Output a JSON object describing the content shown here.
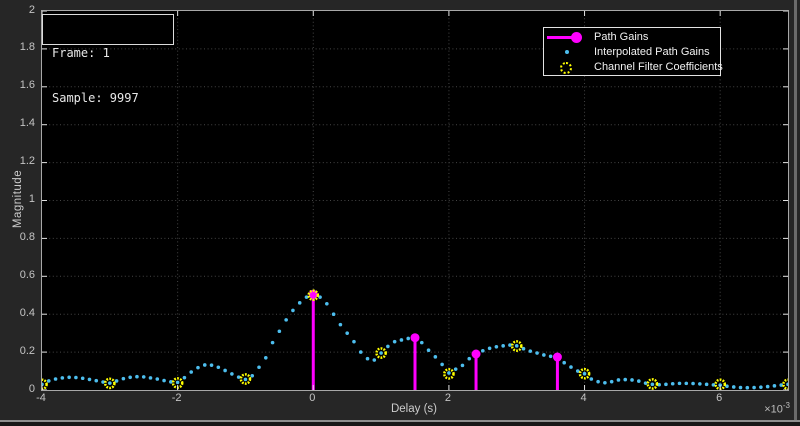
{
  "annotation": {
    "line1": "Frame: 1",
    "line2": "Sample: 9997"
  },
  "axes": {
    "xlabel": "Delay (s)",
    "ylabel": "Magnitude",
    "exponent_base": "×10",
    "exponent_power": "-3",
    "x_tick_values": [
      -4,
      -2,
      0,
      2,
      4,
      6
    ],
    "x_tick_labels": [
      "-4",
      "-2",
      "0",
      "2",
      "4",
      "6"
    ],
    "y_tick_values": [
      0,
      0.2,
      0.4,
      0.6,
      0.8,
      1,
      1.2,
      1.4,
      1.6,
      1.8,
      2
    ],
    "y_tick_labels": [
      "0",
      "0.2",
      "0.4",
      "0.6",
      "0.8",
      "1",
      "1.2",
      "1.4",
      "1.6",
      "1.8",
      "2"
    ],
    "colors": {
      "figure_bg": "#262626",
      "plot_bg": "#000000",
      "axis_box": "#a8a8a8",
      "grid": "#454545",
      "tick_mark": "#e2e2e2",
      "tick_label": "#c4c4c4"
    }
  },
  "legend": {
    "items": [
      {
        "label": "Path Gains",
        "marker": "stem",
        "color": "#ff00ff"
      },
      {
        "label": "Interpolated Path Gains",
        "marker": "dot",
        "color": "#4dbeee"
      },
      {
        "label": "Channel Filter Coefficients",
        "marker": "open-circle",
        "color": "#ffff00"
      }
    ]
  },
  "chart_data": {
    "type": "line",
    "title": "",
    "xlabel": "Delay (s)",
    "ylabel": "Magnitude",
    "x_scale_label": "×10⁻³",
    "xlim": [
      -4,
      7
    ],
    "ylim": [
      0,
      2
    ],
    "grid": true,
    "legend_position": "top-right",
    "series": [
      {
        "name": "Path Gains",
        "type": "stem",
        "color": "#ff00ff",
        "points": [
          [
            0,
            0.505
          ],
          [
            1.5,
            0.276
          ],
          [
            2.4,
            0.19
          ],
          [
            3.6,
            0.174
          ]
        ]
      },
      {
        "name": "Interpolated Path Gains",
        "type": "scatter-dots",
        "color": "#4dbeee",
        "x_start": -4,
        "x_step": 0.1,
        "values": [
          0.03,
          0.048,
          0.058,
          0.064,
          0.067,
          0.066,
          0.062,
          0.056,
          0.049,
          0.042,
          0.036,
          0.048,
          0.06,
          0.067,
          0.07,
          0.069,
          0.064,
          0.058,
          0.05,
          0.043,
          0.04,
          0.065,
          0.095,
          0.118,
          0.132,
          0.131,
          0.12,
          0.103,
          0.085,
          0.068,
          0.056,
          0.075,
          0.12,
          0.17,
          0.25,
          0.31,
          0.37,
          0.42,
          0.46,
          0.49,
          0.505,
          0.49,
          0.455,
          0.4,
          0.345,
          0.3,
          0.255,
          0.2,
          0.165,
          0.158,
          0.195,
          0.23,
          0.255,
          0.264,
          0.272,
          0.276,
          0.25,
          0.21,
          0.175,
          0.135,
          0.09,
          0.11,
          0.13,
          0.165,
          0.19,
          0.207,
          0.22,
          0.228,
          0.233,
          0.237,
          0.233,
          0.218,
          0.205,
          0.195,
          0.185,
          0.178,
          0.172,
          0.144,
          0.121,
          0.1,
          0.086,
          0.058,
          0.044,
          0.038,
          0.044,
          0.053,
          0.055,
          0.053,
          0.047,
          0.036,
          0.03,
          0.028,
          0.03,
          0.033,
          0.035,
          0.035,
          0.034,
          0.032,
          0.03,
          0.027,
          0.026,
          0.02,
          0.016,
          0.013,
          0.012,
          0.013,
          0.015,
          0.018,
          0.022,
          0.026,
          0.03
        ]
      },
      {
        "name": "Channel Filter Coefficients",
        "type": "scatter-open-circles",
        "color": "#ffff00",
        "x_start": -4,
        "x_step": 1,
        "values": [
          0.03,
          0.035,
          0.037,
          0.058,
          0.5,
          0.195,
          0.085,
          0.232,
          0.086,
          0.032,
          0.03,
          0.03
        ]
      }
    ]
  }
}
